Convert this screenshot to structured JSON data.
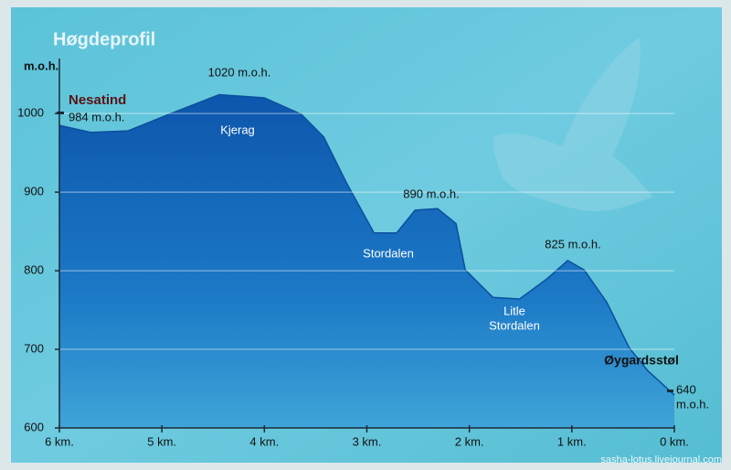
{
  "chart_data": {
    "type": "area",
    "title": "Høgdeprofil",
    "y_label": "m.o.h.",
    "x": [
      6.0,
      5.69,
      5.33,
      4.93,
      4.44,
      4.0,
      3.64,
      3.42,
      3.2,
      2.93,
      2.71,
      2.53,
      2.31,
      2.13,
      2.04,
      1.77,
      1.51,
      1.24,
      1.04,
      0.88,
      0.66,
      0.44,
      0.26,
      0.0
    ],
    "values": [
      985,
      976,
      978,
      999,
      1024,
      1020,
      999,
      970,
      912,
      848,
      848,
      877,
      879,
      860,
      801,
      766,
      764,
      790,
      813,
      801,
      760,
      702,
      673,
      642
    ],
    "color": "#0f5fb6",
    "xlim": [
      6,
      0
    ],
    "ylim": [
      600,
      1070
    ],
    "xticks": [
      {
        "value": 6,
        "label": "6 km."
      },
      {
        "value": 5,
        "label": "5 km."
      },
      {
        "value": 4,
        "label": "4 km."
      },
      {
        "value": 3,
        "label": "3 km."
      },
      {
        "value": 2,
        "label": "2 km."
      },
      {
        "value": 1,
        "label": "1 km."
      },
      {
        "value": 0,
        "label": "0 km."
      }
    ],
    "yticks": [
      600,
      700,
      800,
      900,
      1000
    ],
    "grid": true,
    "annotations": [
      "Nesatind",
      "984 m.o.h.",
      "1020 m.o.h.",
      "Kjerag",
      "890 m.o.h.",
      "Stordalen",
      "825 m.o.h.",
      [
        "Litle",
        "Stordalen"
      ],
      "Øygardsstøl",
      [
        "640",
        "m.o.h."
      ]
    ],
    "watermark": "sasha-lotus.livejournal.com"
  }
}
